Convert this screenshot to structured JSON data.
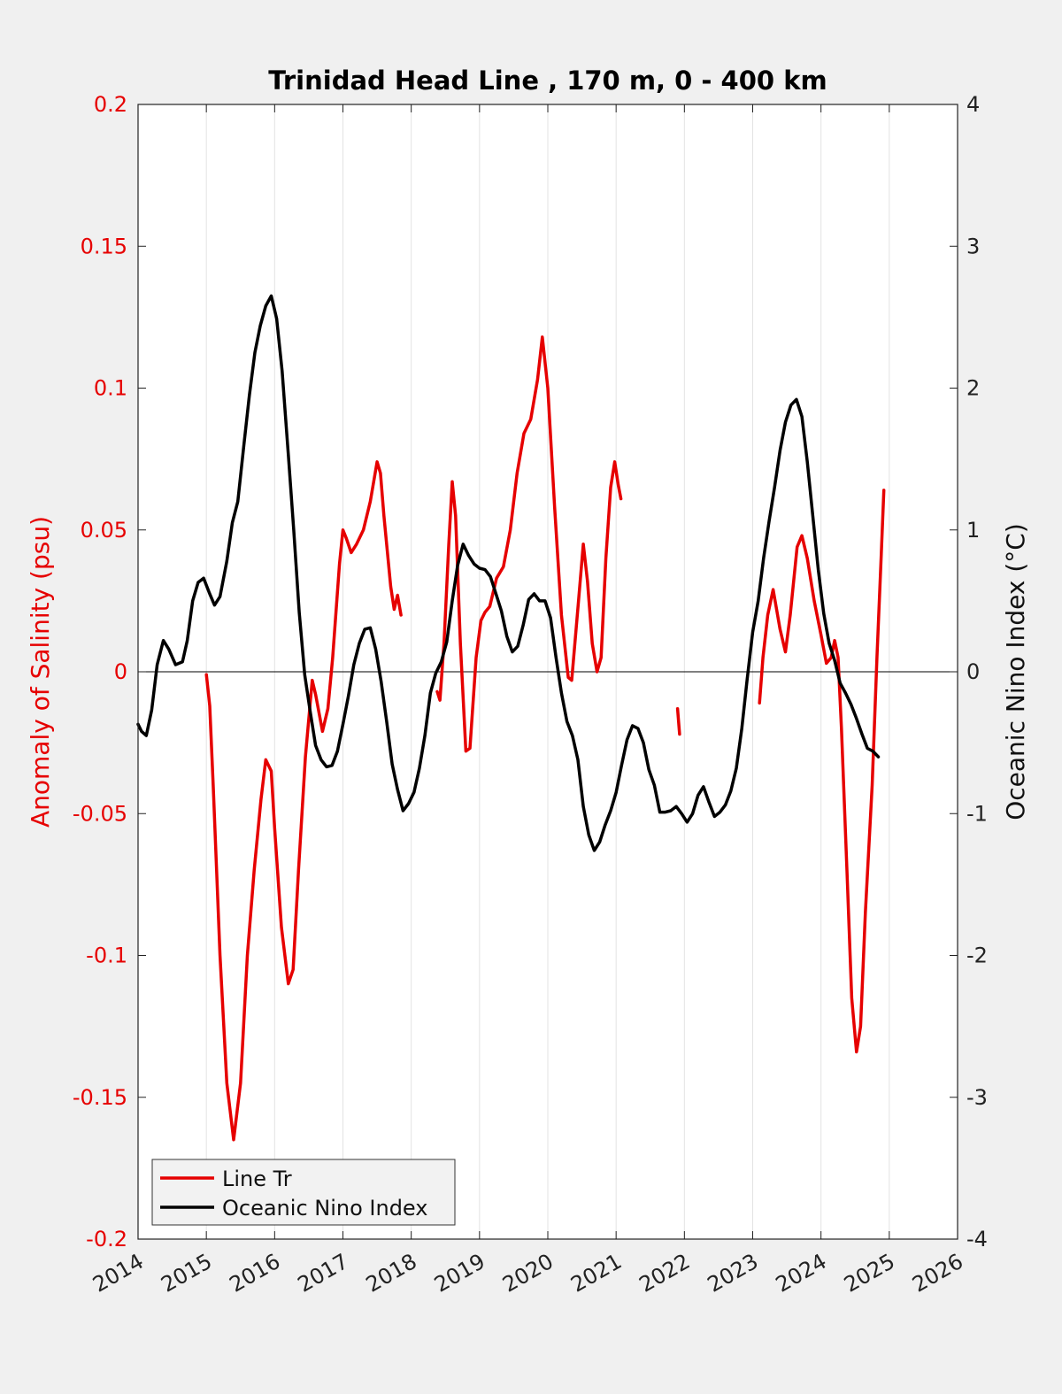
{
  "colors": {
    "figure_bg": "#f0f0f0",
    "axes_bg": "#ffffff",
    "salinity": "#e60000",
    "oni": "#000000",
    "grid": "#e3e3e3"
  },
  "chart_data": {
    "type": "line",
    "title": "Trinidad Head Line , 170 m, 0 - 400 km",
    "xlabel": "",
    "ylabel_left": "Anomaly of Salinity (psu)",
    "ylabel_right": "Oceanic Nino Index (°C)",
    "xlim": [
      2014,
      2026
    ],
    "ylim_left": [
      -0.2,
      0.2
    ],
    "ylim_right": [
      -4,
      4
    ],
    "x_ticks": [
      "2014",
      "2015",
      "2016",
      "2017",
      "2018",
      "2019",
      "2020",
      "2021",
      "2022",
      "2023",
      "2024",
      "2025",
      "2026"
    ],
    "y_left_ticks": [
      "-0.2",
      "-0.15",
      "-0.1",
      "-0.05",
      "0",
      "0.05",
      "0.1",
      "0.15",
      "0.2"
    ],
    "y_right_ticks": [
      "-4",
      "-3",
      "-2",
      "-1",
      "0",
      "1",
      "2",
      "3",
      "4"
    ],
    "grid": "vertical",
    "zero_line": true,
    "legend_position": "bottom-left",
    "series": [
      {
        "name": "Line Tr",
        "axis": "left",
        "segments": [
          [
            [
              2015.0,
              -0.001
            ],
            [
              2015.05,
              -0.012
            ],
            [
              2015.1,
              -0.04
            ],
            [
              2015.2,
              -0.1
            ],
            [
              2015.3,
              -0.145
            ],
            [
              2015.4,
              -0.165
            ],
            [
              2015.5,
              -0.145
            ],
            [
              2015.6,
              -0.1
            ],
            [
              2015.7,
              -0.07
            ],
            [
              2015.8,
              -0.045
            ],
            [
              2015.87,
              -0.031
            ],
            [
              2015.95,
              -0.035
            ],
            [
              2016.0,
              -0.055
            ],
            [
              2016.1,
              -0.09
            ],
            [
              2016.2,
              -0.11
            ],
            [
              2016.27,
              -0.105
            ],
            [
              2016.35,
              -0.07
            ],
            [
              2016.45,
              -0.03
            ],
            [
              2016.55,
              -0.003
            ],
            [
              2016.6,
              -0.008
            ],
            [
              2016.7,
              -0.021
            ],
            [
              2016.78,
              -0.013
            ],
            [
              2016.85,
              0.005
            ],
            [
              2016.95,
              0.038
            ],
            [
              2017.0,
              0.05
            ],
            [
              2017.05,
              0.047
            ],
            [
              2017.12,
              0.042
            ],
            [
              2017.2,
              0.045
            ],
            [
              2017.3,
              0.05
            ],
            [
              2017.4,
              0.06
            ],
            [
              2017.5,
              0.074
            ],
            [
              2017.55,
              0.07
            ],
            [
              2017.6,
              0.055
            ],
            [
              2017.7,
              0.03
            ],
            [
              2017.75,
              0.022
            ],
            [
              2017.8,
              0.027
            ],
            [
              2017.85,
              0.02
            ]
          ],
          [
            [
              2018.38,
              -0.007
            ],
            [
              2018.42,
              -0.01
            ],
            [
              2018.48,
              0.01
            ],
            [
              2018.55,
              0.045
            ],
            [
              2018.6,
              0.067
            ],
            [
              2018.65,
              0.055
            ],
            [
              2018.72,
              0.01
            ],
            [
              2018.8,
              -0.028
            ],
            [
              2018.86,
              -0.027
            ],
            [
              2018.95,
              0.005
            ],
            [
              2019.02,
              0.018
            ],
            [
              2019.08,
              0.021
            ],
            [
              2019.15,
              0.023
            ],
            [
              2019.25,
              0.033
            ],
            [
              2019.35,
              0.037
            ],
            [
              2019.45,
              0.05
            ],
            [
              2019.55,
              0.07
            ],
            [
              2019.65,
              0.084
            ],
            [
              2019.75,
              0.089
            ],
            [
              2019.85,
              0.103
            ],
            [
              2019.92,
              0.118
            ],
            [
              2020.0,
              0.1
            ],
            [
              2020.1,
              0.058
            ],
            [
              2020.2,
              0.02
            ],
            [
              2020.3,
              -0.002
            ],
            [
              2020.35,
              -0.003
            ],
            [
              2020.45,
              0.025
            ],
            [
              2020.52,
              0.045
            ],
            [
              2020.58,
              0.032
            ],
            [
              2020.65,
              0.01
            ],
            [
              2020.72,
              0.0
            ],
            [
              2020.78,
              0.005
            ],
            [
              2020.85,
              0.04
            ],
            [
              2020.92,
              0.065
            ],
            [
              2020.98,
              0.074
            ],
            [
              2021.03,
              0.066
            ],
            [
              2021.07,
              0.061
            ]
          ],
          [
            [
              2021.9,
              -0.013
            ],
            [
              2021.93,
              -0.022
            ]
          ],
          [
            [
              2023.1,
              -0.011
            ],
            [
              2023.15,
              0.005
            ],
            [
              2023.22,
              0.02
            ],
            [
              2023.3,
              0.029
            ],
            [
              2023.4,
              0.015
            ],
            [
              2023.48,
              0.007
            ],
            [
              2023.55,
              0.02
            ],
            [
              2023.65,
              0.044
            ],
            [
              2023.72,
              0.048
            ],
            [
              2023.8,
              0.04
            ],
            [
              2023.9,
              0.025
            ],
            [
              2024.0,
              0.013
            ],
            [
              2024.08,
              0.003
            ],
            [
              2024.15,
              0.005
            ],
            [
              2024.2,
              0.011
            ],
            [
              2024.25,
              0.005
            ],
            [
              2024.3,
              -0.02
            ],
            [
              2024.38,
              -0.07
            ],
            [
              2024.45,
              -0.115
            ],
            [
              2024.52,
              -0.134
            ],
            [
              2024.58,
              -0.125
            ],
            [
              2024.65,
              -0.085
            ],
            [
              2024.75,
              -0.04
            ],
            [
              2024.82,
              0.005
            ],
            [
              2024.88,
              0.04
            ],
            [
              2024.92,
              0.064
            ]
          ]
        ]
      },
      {
        "name": "Oceanic Nino Index",
        "axis": "right",
        "points": [
          [
            2014.0,
            -0.37
          ],
          [
            2014.05,
            -0.42
          ],
          [
            2014.12,
            -0.45
          ],
          [
            2014.2,
            -0.27
          ],
          [
            2014.28,
            0.05
          ],
          [
            2014.37,
            0.22
          ],
          [
            2014.45,
            0.16
          ],
          [
            2014.55,
            0.05
          ],
          [
            2014.65,
            0.07
          ],
          [
            2014.72,
            0.22
          ],
          [
            2014.8,
            0.5
          ],
          [
            2014.88,
            0.63
          ],
          [
            2014.96,
            0.66
          ],
          [
            2015.04,
            0.56
          ],
          [
            2015.12,
            0.47
          ],
          [
            2015.2,
            0.53
          ],
          [
            2015.3,
            0.78
          ],
          [
            2015.38,
            1.05
          ],
          [
            2015.46,
            1.2
          ],
          [
            2015.55,
            1.6
          ],
          [
            2015.63,
            1.95
          ],
          [
            2015.71,
            2.25
          ],
          [
            2015.79,
            2.44
          ],
          [
            2015.87,
            2.58
          ],
          [
            2015.95,
            2.65
          ],
          [
            2016.03,
            2.49
          ],
          [
            2016.11,
            2.12
          ],
          [
            2016.2,
            1.53
          ],
          [
            2016.28,
            1.0
          ],
          [
            2016.36,
            0.42
          ],
          [
            2016.44,
            -0.02
          ],
          [
            2016.52,
            -0.28
          ],
          [
            2016.6,
            -0.52
          ],
          [
            2016.68,
            -0.62
          ],
          [
            2016.76,
            -0.67
          ],
          [
            2016.84,
            -0.66
          ],
          [
            2016.92,
            -0.56
          ],
          [
            2017.0,
            -0.37
          ],
          [
            2017.08,
            -0.17
          ],
          [
            2017.16,
            0.05
          ],
          [
            2017.24,
            0.2
          ],
          [
            2017.32,
            0.3
          ],
          [
            2017.4,
            0.31
          ],
          [
            2017.48,
            0.16
          ],
          [
            2017.56,
            -0.07
          ],
          [
            2017.64,
            -0.35
          ],
          [
            2017.72,
            -0.65
          ],
          [
            2017.8,
            -0.83
          ],
          [
            2017.88,
            -0.98
          ],
          [
            2017.96,
            -0.93
          ],
          [
            2018.04,
            -0.85
          ],
          [
            2018.12,
            -0.68
          ],
          [
            2018.2,
            -0.45
          ],
          [
            2018.28,
            -0.15
          ],
          [
            2018.36,
            -0.01
          ],
          [
            2018.44,
            0.07
          ],
          [
            2018.52,
            0.21
          ],
          [
            2018.6,
            0.5
          ],
          [
            2018.68,
            0.75
          ],
          [
            2018.76,
            0.9
          ],
          [
            2018.84,
            0.82
          ],
          [
            2018.92,
            0.76
          ],
          [
            2019.0,
            0.73
          ],
          [
            2019.08,
            0.72
          ],
          [
            2019.16,
            0.67
          ],
          [
            2019.24,
            0.55
          ],
          [
            2019.32,
            0.43
          ],
          [
            2019.4,
            0.25
          ],
          [
            2019.48,
            0.14
          ],
          [
            2019.56,
            0.18
          ],
          [
            2019.64,
            0.33
          ],
          [
            2019.72,
            0.51
          ],
          [
            2019.8,
            0.55
          ],
          [
            2019.88,
            0.5
          ],
          [
            2019.96,
            0.5
          ],
          [
            2020.04,
            0.38
          ],
          [
            2020.12,
            0.1
          ],
          [
            2020.2,
            -0.15
          ],
          [
            2020.28,
            -0.35
          ],
          [
            2020.36,
            -0.45
          ],
          [
            2020.44,
            -0.62
          ],
          [
            2020.52,
            -0.95
          ],
          [
            2020.6,
            -1.15
          ],
          [
            2020.68,
            -1.26
          ],
          [
            2020.76,
            -1.2
          ],
          [
            2020.84,
            -1.08
          ],
          [
            2020.92,
            -0.98
          ],
          [
            2021.0,
            -0.85
          ],
          [
            2021.08,
            -0.66
          ],
          [
            2021.16,
            -0.48
          ],
          [
            2021.24,
            -0.38
          ],
          [
            2021.32,
            -0.4
          ],
          [
            2021.4,
            -0.5
          ],
          [
            2021.48,
            -0.69
          ],
          [
            2021.56,
            -0.8
          ],
          [
            2021.64,
            -0.99
          ],
          [
            2021.72,
            -0.99
          ],
          [
            2021.8,
            -0.98
          ],
          [
            2021.88,
            -0.95
          ],
          [
            2021.96,
            -1.0
          ],
          [
            2022.04,
            -1.06
          ],
          [
            2022.12,
            -1.0
          ],
          [
            2022.2,
            -0.87
          ],
          [
            2022.28,
            -0.81
          ],
          [
            2022.36,
            -0.92
          ],
          [
            2022.44,
            -1.02
          ],
          [
            2022.52,
            -0.99
          ],
          [
            2022.6,
            -0.94
          ],
          [
            2022.68,
            -0.84
          ],
          [
            2022.76,
            -0.68
          ],
          [
            2022.84,
            -0.4
          ],
          [
            2022.92,
            -0.05
          ],
          [
            2023.0,
            0.28
          ],
          [
            2023.08,
            0.5
          ],
          [
            2023.16,
            0.8
          ],
          [
            2023.24,
            1.06
          ],
          [
            2023.32,
            1.3
          ],
          [
            2023.4,
            1.56
          ],
          [
            2023.48,
            1.76
          ],
          [
            2023.56,
            1.88
          ],
          [
            2023.64,
            1.92
          ],
          [
            2023.72,
            1.8
          ],
          [
            2023.8,
            1.48
          ],
          [
            2023.88,
            1.1
          ],
          [
            2023.96,
            0.72
          ],
          [
            2024.04,
            0.41
          ],
          [
            2024.12,
            0.2
          ],
          [
            2024.2,
            0.08
          ],
          [
            2024.28,
            -0.08
          ],
          [
            2024.36,
            -0.15
          ],
          [
            2024.44,
            -0.23
          ],
          [
            2024.52,
            -0.33
          ],
          [
            2024.6,
            -0.44
          ],
          [
            2024.68,
            -0.54
          ],
          [
            2024.76,
            -0.56
          ],
          [
            2024.84,
            -0.6
          ]
        ]
      }
    ]
  }
}
